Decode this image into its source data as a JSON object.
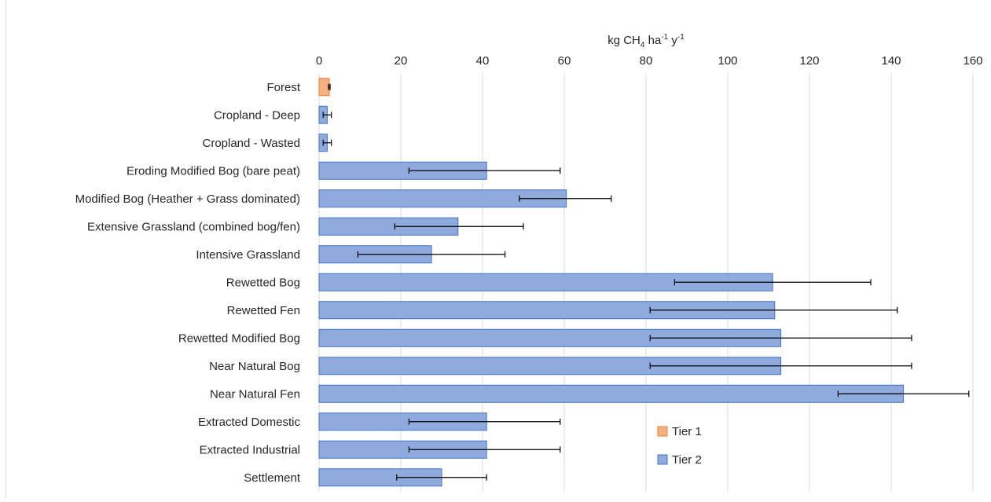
{
  "chart_data": {
    "type": "bar",
    "orientation": "horizontal",
    "title": "",
    "xlabel": "kg CH4 ha-1 y-1",
    "xlabel_parts": {
      "base": "kg CH",
      "sub": "4",
      "mid1": " ha",
      "sup1": "-1",
      "mid2": " y",
      "sup2": "-1"
    },
    "ylabel": "",
    "xlim": [
      0,
      160
    ],
    "x_ticks": [
      0,
      20,
      40,
      60,
      80,
      100,
      120,
      140,
      160
    ],
    "x_axis_position": "top",
    "grid": true,
    "categories": [
      "Forest",
      "Cropland  - Deep",
      "Cropland - Wasted",
      "Eroding Modified Bog (bare peat)",
      "Modified Bog (Heather + Grass dominated)",
      "Extensive Grassland (combined bog/fen)",
      "Intensive Grassland",
      "Rewetted Bog",
      "Rewetted Fen",
      "Rewetted Modified Bog",
      "Near Natural Bog",
      "Near Natural Fen",
      "Extracted Domestic",
      "Extracted Industrial",
      "Settlement"
    ],
    "values": [
      2.5,
      2,
      2,
      41,
      60.5,
      34,
      27.5,
      111,
      111.5,
      113,
      113,
      143,
      41,
      41,
      30
    ],
    "error_low": [
      2.3,
      1,
      1,
      22,
      49,
      18.5,
      9.5,
      87,
      81,
      81,
      81,
      127,
      22,
      22,
      19
    ],
    "error_high": [
      2.7,
      3,
      3,
      59,
      71.5,
      50,
      45.5,
      135,
      141.5,
      145,
      145,
      159,
      59,
      59,
      41
    ],
    "tier": [
      1,
      2,
      2,
      2,
      2,
      2,
      2,
      2,
      2,
      2,
      2,
      2,
      2,
      2,
      2
    ],
    "series": [
      {
        "name": "Tier 1",
        "color": "#f4b183",
        "border": "#ed7d31"
      },
      {
        "name": "Tier 2",
        "color": "#8faadc",
        "border": "#4472c4"
      }
    ],
    "legend_position": "bottom-center"
  }
}
